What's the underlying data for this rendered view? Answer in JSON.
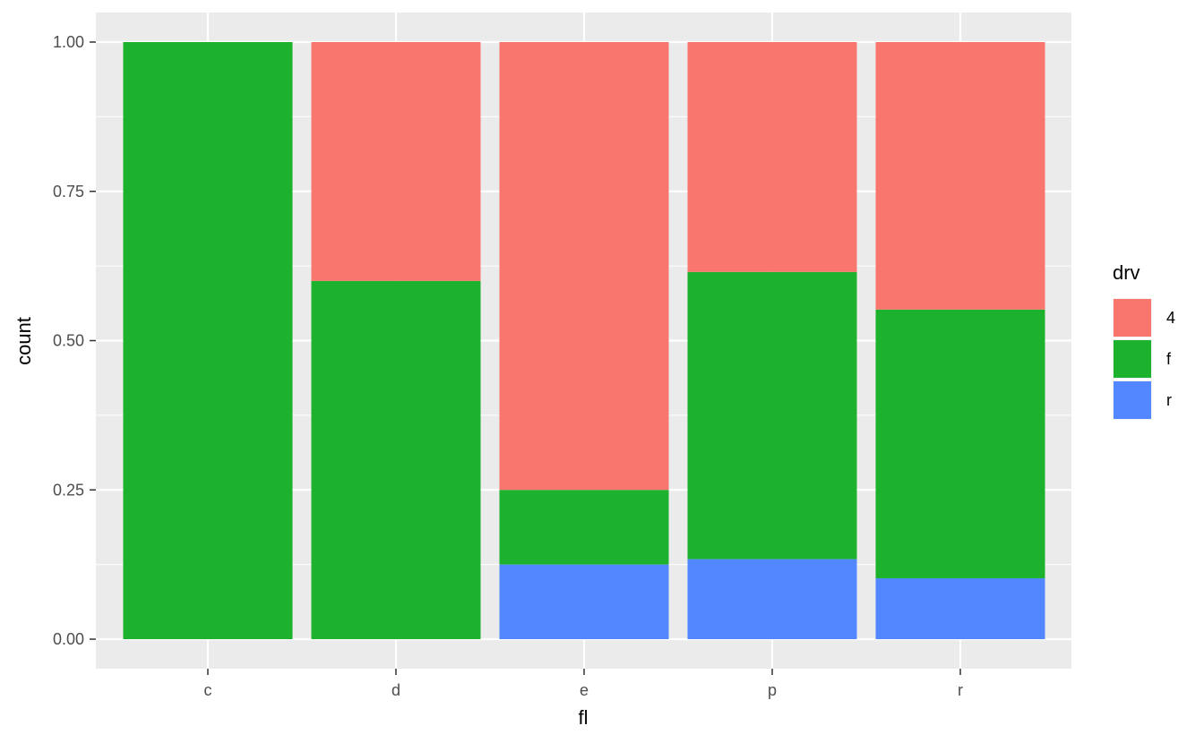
{
  "chart_data": {
    "type": "bar",
    "stacked": true,
    "position": "fill",
    "xlabel": "fl",
    "ylabel": "count",
    "categories": [
      "c",
      "d",
      "e",
      "p",
      "r"
    ],
    "ylim": [
      0,
      1
    ],
    "yticks": [
      0,
      0.25,
      0.5,
      0.75,
      1
    ],
    "ytick_labels": [
      "0.00",
      "0.25",
      "0.50",
      "0.75",
      "1.00"
    ],
    "grid": true,
    "legend": {
      "title": "drv",
      "placement": "right"
    },
    "series": [
      {
        "name": "4",
        "color": "#F8766D",
        "values": [
          0,
          0.4,
          0.75,
          0.385,
          0.448
        ]
      },
      {
        "name": "f",
        "color": "#1CB22E",
        "values": [
          1,
          0.6,
          0.125,
          0.481,
          0.45
        ]
      },
      {
        "name": "r",
        "color": "#5287FF",
        "values": [
          0,
          0,
          0.125,
          0.134,
          0.102
        ]
      }
    ],
    "stack_order_bottom_to_top": [
      "r",
      "f",
      "4"
    ]
  }
}
